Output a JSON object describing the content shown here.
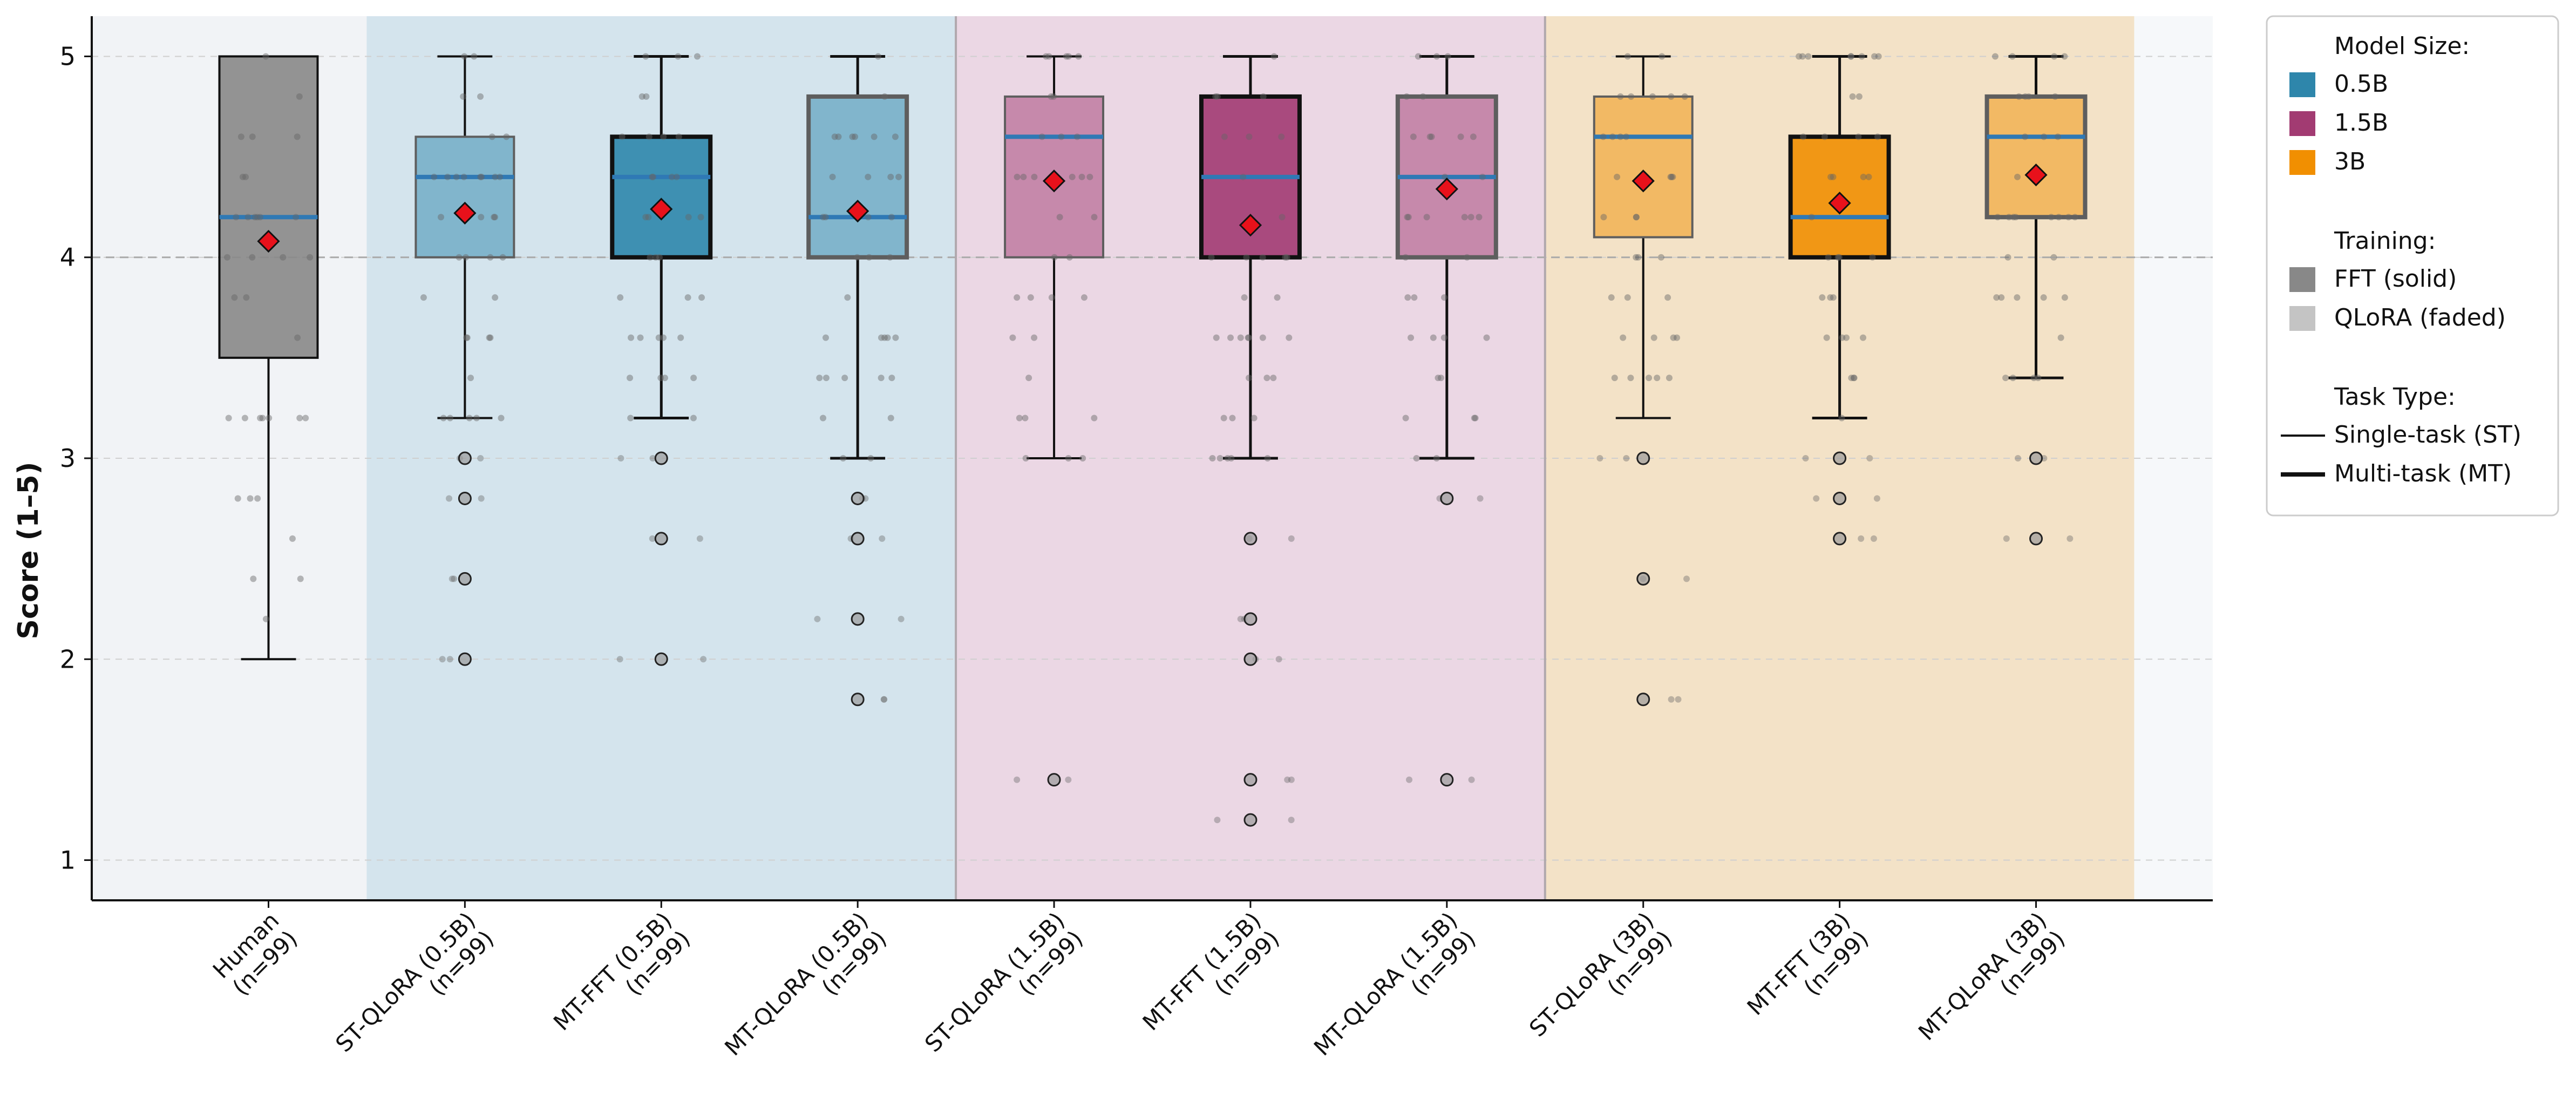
{
  "chart_data": {
    "type": "box",
    "title": "",
    "xlabel": "",
    "ylabel": "Score (1–5)",
    "ylim": [
      0.8,
      5.2
    ],
    "yticks": [
      1,
      2,
      3,
      4,
      5
    ],
    "grid": "y-dashed",
    "reference_line_y": 4,
    "categories": [
      {
        "line1": "Human",
        "line2": "(n=99)"
      },
      {
        "line1": "ST-QLoRA (0.5B)",
        "line2": "(n=99)"
      },
      {
        "line1": "MT-FFT (0.5B)",
        "line2": "(n=99)"
      },
      {
        "line1": "MT-QLoRA (0.5B)",
        "line2": "(n=99)"
      },
      {
        "line1": "ST-QLoRA (1.5B)",
        "line2": "(n=99)"
      },
      {
        "line1": "MT-FFT (1.5B)",
        "line2": "(n=99)"
      },
      {
        "line1": "MT-QLoRA (1.5B)",
        "line2": "(n=99)"
      },
      {
        "line1": "ST-QLoRA (3B)",
        "line2": "(n=99)"
      },
      {
        "line1": "MT-FFT (3B)",
        "line2": "(n=99)"
      },
      {
        "line1": "MT-QLoRA (3B)",
        "line2": "(n=99)"
      }
    ],
    "groups": [
      {
        "name": "Human",
        "members": [
          0
        ],
        "band_color": "#eef1f5"
      },
      {
        "name": "0.5B",
        "members": [
          1,
          2,
          3
        ],
        "band_color": "#cddfea"
      },
      {
        "name": "1.5B",
        "members": [
          4,
          5,
          6
        ],
        "band_color": "#e7d0df"
      },
      {
        "name": "3B",
        "members": [
          7,
          8,
          9
        ],
        "band_color": "#f1ddbd"
      }
    ],
    "boxes": [
      {
        "q1": 3.5,
        "median": 4.2,
        "q3": 5.0,
        "whisker_low": 2.0,
        "whisker_high": 5.0,
        "mean": 4.08,
        "color": "#888888",
        "training": "FFT",
        "task": "ST",
        "outliers": []
      },
      {
        "q1": 4.0,
        "median": 4.4,
        "q3": 4.6,
        "whisker_low": 3.2,
        "whisker_high": 5.0,
        "mean": 4.22,
        "color": "#2e86ab",
        "training": "QLoRA",
        "task": "ST",
        "outliers": [
          3.0,
          2.8,
          2.4,
          2.0
        ]
      },
      {
        "q1": 4.0,
        "median": 4.4,
        "q3": 4.6,
        "whisker_low": 3.2,
        "whisker_high": 5.0,
        "mean": 4.24,
        "color": "#2e86ab",
        "training": "FFT",
        "task": "MT",
        "outliers": [
          3.0,
          2.6,
          2.0
        ]
      },
      {
        "q1": 4.0,
        "median": 4.2,
        "q3": 4.8,
        "whisker_low": 3.0,
        "whisker_high": 5.0,
        "mean": 4.23,
        "color": "#2e86ab",
        "training": "QLoRA",
        "task": "MT",
        "outliers": [
          2.8,
          2.6,
          2.2,
          1.8
        ]
      },
      {
        "q1": 4.0,
        "median": 4.6,
        "q3": 4.8,
        "whisker_low": 3.0,
        "whisker_high": 5.0,
        "mean": 4.38,
        "color": "#a23b72",
        "training": "QLoRA",
        "task": "ST",
        "outliers": [
          1.4
        ]
      },
      {
        "q1": 4.0,
        "median": 4.4,
        "q3": 4.8,
        "whisker_low": 3.0,
        "whisker_high": 5.0,
        "mean": 4.16,
        "color": "#a23b72",
        "training": "FFT",
        "task": "MT",
        "outliers": [
          2.6,
          2.2,
          2.0,
          1.4,
          1.2
        ]
      },
      {
        "q1": 4.0,
        "median": 4.4,
        "q3": 4.8,
        "whisker_low": 3.0,
        "whisker_high": 5.0,
        "mean": 4.34,
        "color": "#a23b72",
        "training": "QLoRA",
        "task": "MT",
        "outliers": [
          2.8,
          1.4
        ]
      },
      {
        "q1": 4.1,
        "median": 4.6,
        "q3": 4.8,
        "whisker_low": 3.2,
        "whisker_high": 5.0,
        "mean": 4.38,
        "color": "#f18f01",
        "training": "QLoRA",
        "task": "ST",
        "outliers": [
          3.0,
          2.4,
          1.8
        ]
      },
      {
        "q1": 4.0,
        "median": 4.2,
        "q3": 4.6,
        "whisker_low": 3.2,
        "whisker_high": 5.0,
        "mean": 4.27,
        "color": "#f18f01",
        "training": "FFT",
        "task": "MT",
        "outliers": [
          3.0,
          2.8,
          2.6
        ]
      },
      {
        "q1": 4.2,
        "median": 4.6,
        "q3": 4.8,
        "whisker_low": 3.4,
        "whisker_high": 5.0,
        "mean": 4.41,
        "color": "#f18f01",
        "training": "QLoRA",
        "task": "MT",
        "outliers": [
          3.0,
          2.6
        ]
      }
    ],
    "legend": {
      "position": "outside-right",
      "sections": [
        {
          "title": "Model Size:",
          "items": [
            {
              "label": "0.5B",
              "kind": "patch",
              "color": "#2e86ab"
            },
            {
              "label": "1.5B",
              "kind": "patch",
              "color": "#a23b72"
            },
            {
              "label": "3B",
              "kind": "patch",
              "color": "#f18f01"
            }
          ]
        },
        {
          "title": "Training:",
          "items": [
            {
              "label": "FFT (solid)",
              "kind": "patch",
              "color": "#888888"
            },
            {
              "label": "QLoRA (faded)",
              "kind": "patch",
              "color": "#c4c4c4"
            }
          ]
        },
        {
          "title": "Task Type:",
          "items": [
            {
              "label": "Single-task (ST)",
              "kind": "line-thin",
              "color": "#111111"
            },
            {
              "label": "Multi-task (MT)",
              "kind": "line-thick",
              "color": "#111111"
            }
          ]
        }
      ]
    },
    "styles": {
      "median_color": "#2f79b5",
      "mean_color": "#e8111b",
      "whisker_color": "#111111",
      "point_color": "#666666"
    }
  }
}
